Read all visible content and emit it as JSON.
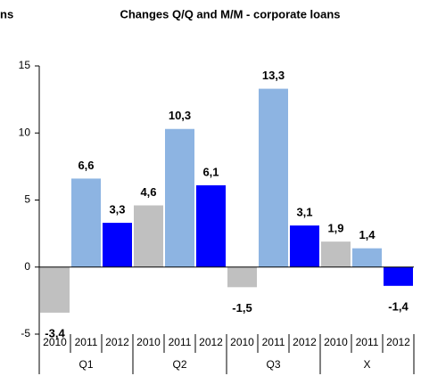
{
  "cropped_text": "ns",
  "chart_data": {
    "type": "bar",
    "title": "Changes Q/Q and M/M - corporate loans",
    "categories": [
      "Q1",
      "Q2",
      "Q3",
      "X"
    ],
    "series": [
      {
        "name": "2010",
        "color": "#c0c0c0",
        "values": [
          -3.4,
          4.6,
          -1.5,
          1.9
        ],
        "value_labels": [
          "-3,4",
          "4,6",
          "-1,5",
          "1,9"
        ]
      },
      {
        "name": "2011",
        "color": "#8db4e2",
        "values": [
          6.6,
          10.3,
          13.3,
          1.4
        ],
        "value_labels": [
          "6,6",
          "10,3",
          "13,3",
          "1,4"
        ]
      },
      {
        "name": "2012",
        "color": "#0000ff",
        "values": [
          3.3,
          6.1,
          3.1,
          -1.4
        ],
        "value_labels": [
          "3,3",
          "6,1",
          "3,1",
          "-1,4"
        ]
      }
    ],
    "ylim": [
      -5,
      15
    ],
    "yticks": [
      -5,
      0,
      5,
      10,
      15
    ],
    "grid": false
  }
}
